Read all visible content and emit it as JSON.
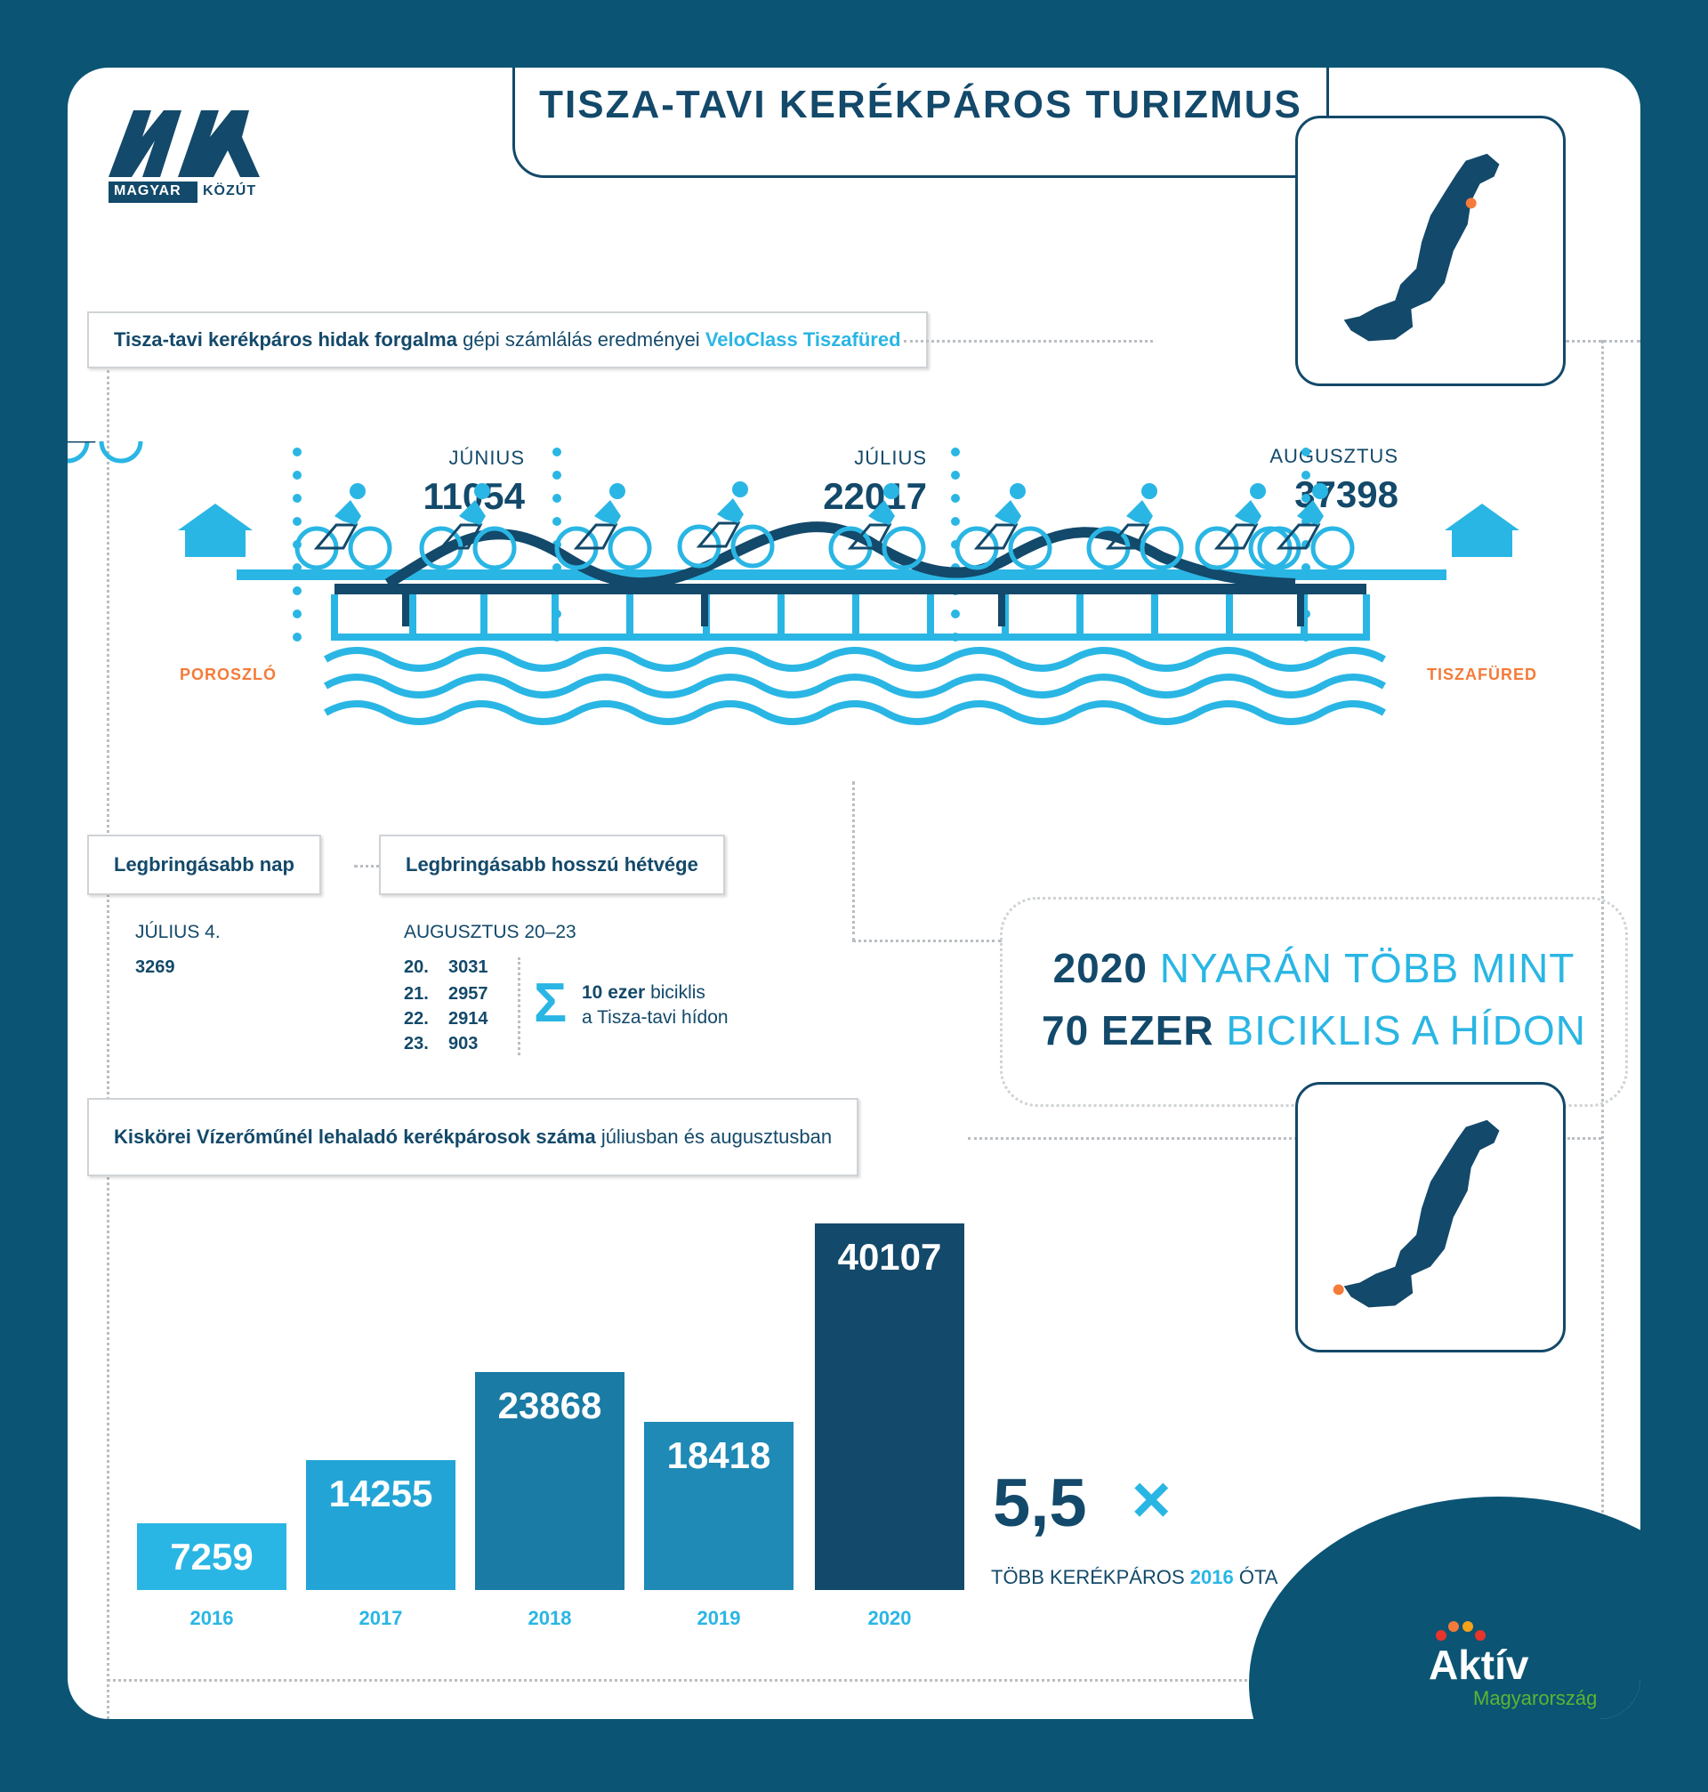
{
  "title": "TISZA-TAVI KERÉKPÁROS TURIZMUS",
  "logo": {
    "brand_left": "MAGYAR",
    "brand_right": "KÖZÚT"
  },
  "bridge_header": {
    "bold": "Tisza-tavi kerékpáros hidak forgalma",
    "normal": "gépi számlálás eredményei",
    "accent": "VeloClass Tiszafüred"
  },
  "months": [
    {
      "name": "JÚNIUS",
      "value": "11054"
    },
    {
      "name": "JÚLIUS",
      "value": "22017"
    },
    {
      "name": "AUGUSZTUS",
      "value": "37398"
    }
  ],
  "towns": {
    "left": "POROSZLÓ",
    "right": "TISZAFÜRED"
  },
  "best_day": {
    "label": "Legbringásabb nap",
    "date": "JÚLIUS 4.",
    "value": "3269"
  },
  "best_weekend": {
    "label": "Legbringásabb hosszú hétvége",
    "range": "AUGUSZTUS 20–23",
    "days": [
      {
        "day": "20.",
        "value": "3031"
      },
      {
        "day": "21.",
        "value": "2957"
      },
      {
        "day": "22.",
        "value": "2914"
      },
      {
        "day": "23.",
        "value": "903"
      }
    ],
    "sum_symbol": "Σ",
    "sum_bold": "10 ezer",
    "sum_text1": "biciklis",
    "sum_text2": "a Tisza-tavi hídon"
  },
  "summary": {
    "l1_bold": "2020",
    "l1_rest": "NYARÁN TÖBB MINT",
    "l2_bold": "70 EZER",
    "l2_rest": "BICIKLIS A HÍDON"
  },
  "kiskore_header": {
    "bold": "Kiskörei Vízerőműnél lehaladó kerékpárosok száma",
    "normal": "júliusban és augusztusban"
  },
  "multiplier": {
    "value": "5,5",
    "sign": "×",
    "text1": "TÖBB KERÉKPÁROS",
    "year": "2016",
    "text2": "ÓTA"
  },
  "footer_logo": {
    "title": "Aktív",
    "subtitle": "Magyarország"
  },
  "colors": {
    "navy": "#13496a",
    "cyan": "#2ab6e4",
    "orange": "#f47b3a",
    "bg": "#0b5474",
    "green": "#5cb531"
  },
  "chart_data": {
    "type": "bar",
    "categories": [
      "2016",
      "2017",
      "2018",
      "2019",
      "2020"
    ],
    "values": [
      7259,
      14255,
      23868,
      18418,
      40107
    ],
    "colors": [
      "#2ab6e4",
      "#22a5d6",
      "#1a7ba5",
      "#1e8ab5",
      "#13496a"
    ],
    "title": "",
    "xlabel": "",
    "ylabel": ""
  }
}
